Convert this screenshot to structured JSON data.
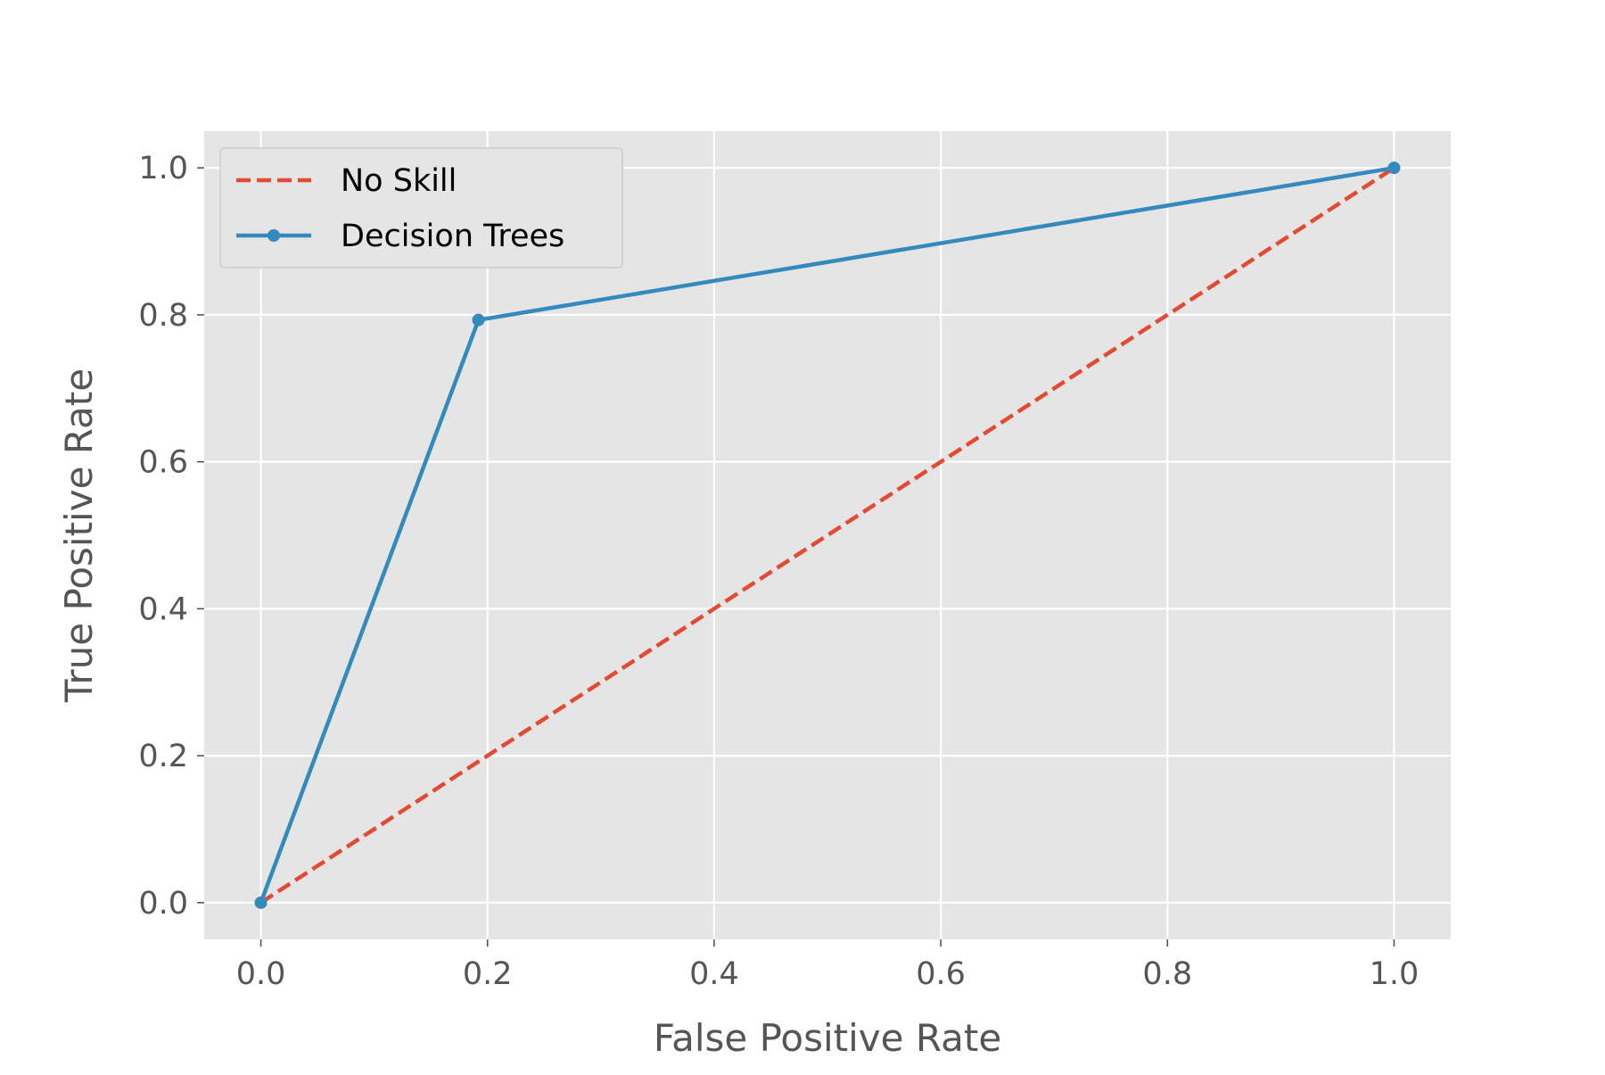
{
  "chart_data": {
    "type": "line",
    "title": "",
    "xlabel": "False Positive Rate",
    "ylabel": "True Positive Rate",
    "xlim": [
      -0.05,
      1.05
    ],
    "ylim": [
      -0.05,
      1.05
    ],
    "xticks": [
      "0.0",
      "0.2",
      "0.4",
      "0.6",
      "0.8",
      "1.0"
    ],
    "yticks": [
      "0.0",
      "0.2",
      "0.4",
      "0.6",
      "0.8",
      "1.0"
    ],
    "grid": true,
    "legend_position": "top-left",
    "series": [
      {
        "name": "No Skill",
        "style": "dashed",
        "markers": false,
        "color": "#E24A33",
        "x": [
          0,
          1
        ],
        "y": [
          0,
          1
        ]
      },
      {
        "name": "Decision Trees",
        "style": "solid",
        "markers": true,
        "color": "#348ABD",
        "x": [
          0,
          0.192,
          1
        ],
        "y": [
          0,
          0.793,
          1
        ]
      }
    ]
  }
}
